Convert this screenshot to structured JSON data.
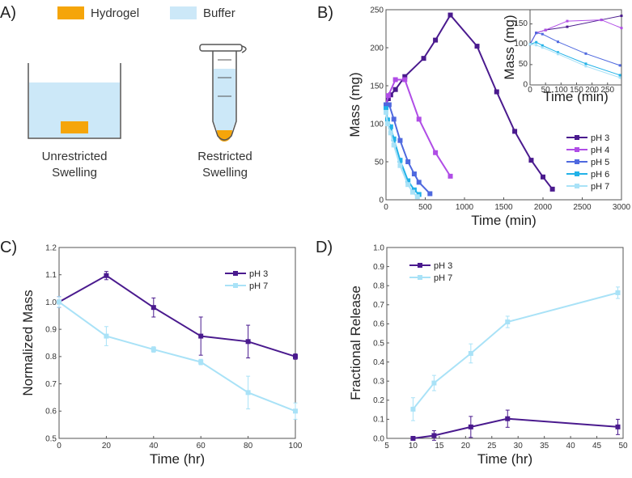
{
  "panel_a": {
    "label": "A)",
    "legend": [
      {
        "label": "Hydrogel",
        "color": "#f5a50a"
      },
      {
        "label": "Buffer",
        "color": "#cce8f8"
      }
    ],
    "left_caption": [
      "Unrestricted",
      "Swelling"
    ],
    "right_caption": [
      "Restricted",
      "Swelling"
    ]
  },
  "colors": {
    "pH 3": "#4a1a8e",
    "pH 4": "#b04de6",
    "pH 5": "#4f69df",
    "pH 6": "#22b2e8",
    "pH 7": "#a9e2f7"
  },
  "chart_data": [
    {
      "id": "B",
      "panel_label": "B)",
      "type": "line",
      "xlabel": "Time (min)",
      "ylabel": "Mass (mg)",
      "xlim": [
        0,
        3000
      ],
      "ylim": [
        0,
        250
      ],
      "xticks": [
        0,
        500,
        1000,
        1500,
        2000,
        2500,
        3000
      ],
      "yticks": [
        0,
        50,
        100,
        150,
        200,
        250
      ],
      "legend_position": "bottom-right",
      "series": [
        {
          "name": "pH 3",
          "x": [
            0,
            30,
            60,
            120,
            240,
            480,
            630,
            820,
            1160,
            1410,
            1640,
            1850,
            2000,
            2120
          ],
          "y": [
            125,
            133,
            138,
            145,
            162,
            186,
            210,
            243,
            202,
            142,
            90,
            52,
            30,
            14
          ]
        },
        {
          "name": "pH 4",
          "x": [
            0,
            30,
            120,
            240,
            420,
            630,
            820
          ],
          "y": [
            125,
            137,
            158,
            158,
            106,
            62,
            31
          ]
        },
        {
          "name": "pH 5",
          "x": [
            0,
            40,
            100,
            180,
            280,
            360,
            420,
            560
          ],
          "y": [
            125,
            125,
            106,
            78,
            50,
            34,
            23,
            8
          ]
        },
        {
          "name": "pH 6",
          "x": [
            0,
            20,
            60,
            100,
            180,
            280,
            360,
            420
          ],
          "y": [
            120,
            105,
            96,
            80,
            52,
            25,
            13,
            7
          ]
        },
        {
          "name": "pH 7",
          "x": [
            0,
            20,
            60,
            100,
            180,
            280,
            340,
            400
          ],
          "y": [
            115,
            100,
            88,
            72,
            45,
            20,
            10,
            4
          ]
        }
      ],
      "inset": {
        "xlabel": "Time (min)",
        "ylabel": "Mass (mg)",
        "xlim": [
          0,
          295
        ],
        "ylim": [
          0,
          185
        ],
        "xticks": [
          0,
          50,
          100,
          150,
          200,
          250
        ],
        "yticks": [
          0,
          50,
          100,
          150
        ],
        "series": [
          {
            "name": "pH 3",
            "x": [
              0,
              20,
              50,
              120,
              230,
              295
            ],
            "y": [
              100,
              128,
              135,
              143,
              160,
              170
            ]
          },
          {
            "name": "pH 4",
            "x": [
              0,
              20,
              50,
              120,
              230,
              295
            ],
            "y": [
              100,
              128,
              135,
              157,
              160,
              140
            ]
          },
          {
            "name": "pH 5",
            "x": [
              0,
              20,
              40,
              90,
              180,
              290
            ],
            "y": [
              100,
              128,
              125,
              106,
              77,
              48
            ]
          },
          {
            "name": "pH 6",
            "x": [
              0,
              20,
              40,
              90,
              180,
              290
            ],
            "y": [
              100,
              105,
              97,
              80,
              52,
              24
            ]
          },
          {
            "name": "pH 7",
            "x": [
              0,
              20,
              40,
              90,
              180,
              290
            ],
            "y": [
              100,
              98,
              92,
              76,
              46,
              18
            ]
          }
        ]
      }
    },
    {
      "id": "C",
      "panel_label": "C)",
      "type": "line",
      "xlabel": "Time (hr)",
      "ylabel": "Normalized Mass",
      "xlim": [
        0,
        100
      ],
      "ylim": [
        0.5,
        1.2
      ],
      "xticks": [
        0,
        20,
        40,
        60,
        80,
        100
      ],
      "yticks": [
        0.5,
        0.6,
        0.7,
        0.8,
        0.9,
        1.0,
        1.1,
        1.2
      ],
      "legend_position": "top-right",
      "series": [
        {
          "name": "pH 3",
          "x": [
            0,
            20,
            40,
            60,
            80,
            100
          ],
          "y": [
            1.0,
            1.097,
            0.98,
            0.875,
            0.855,
            0.8
          ],
          "err": [
            0.02,
            0.015,
            0.035,
            0.07,
            0.06,
            0.01
          ]
        },
        {
          "name": "pH 7",
          "x": [
            0,
            20,
            40,
            60,
            80,
            100
          ],
          "y": [
            1.0,
            0.875,
            0.826,
            0.78,
            0.668,
            0.6
          ],
          "err": [
            0.02,
            0.035,
            0.01,
            0.01,
            0.06,
            0.03
          ]
        }
      ]
    },
    {
      "id": "D",
      "panel_label": "D)",
      "type": "line",
      "xlabel": "Time (hr)",
      "ylabel": "Fractional Release",
      "xlim": [
        5,
        50
      ],
      "ylim": [
        0,
        1.0
      ],
      "xticks": [
        5,
        10,
        15,
        20,
        25,
        30,
        35,
        40,
        45,
        50
      ],
      "yticks": [
        0,
        0.1,
        0.2,
        0.3,
        0.4,
        0.5,
        0.6,
        0.7,
        0.8,
        0.9,
        1.0
      ],
      "legend_position": "top-left",
      "series": [
        {
          "name": "pH 3",
          "x": [
            10,
            14,
            21,
            28,
            49
          ],
          "y": [
            0,
            0.015,
            0.06,
            0.103,
            0.06
          ],
          "err": [
            0.005,
            0.025,
            0.055,
            0.045,
            0.04
          ]
        },
        {
          "name": "pH 7",
          "x": [
            10,
            14,
            21,
            28,
            49
          ],
          "y": [
            0.153,
            0.29,
            0.445,
            0.61,
            0.763
          ],
          "err": [
            0.06,
            0.04,
            0.05,
            0.03,
            0.03
          ]
        }
      ]
    }
  ]
}
